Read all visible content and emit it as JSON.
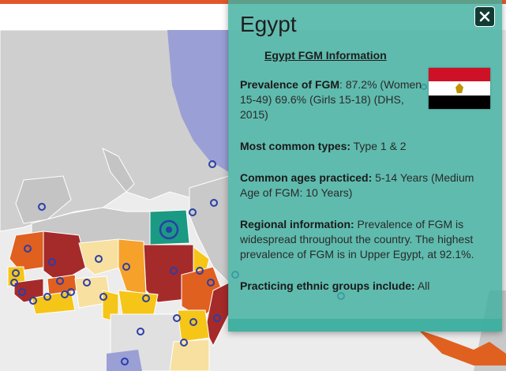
{
  "panel": {
    "country": "Egypt",
    "subtitle": "Egypt FGM Information",
    "close_icon": "close-icon",
    "flag_icon": "egypt-flag",
    "sections": [
      {
        "label": "Prevalence of FGM",
        "text": ": 87.2% (Women 15-49) 69.6% (Girls 15-18) (DHS, 2015)"
      },
      {
        "label": "Most common types:",
        "text": " Type 1 & 2"
      },
      {
        "label": "Common ages practiced:",
        "text": " 5-14 Years (Medium Age of FGM: 10 Years)"
      },
      {
        "label": "Regional information:",
        "text": " Prevalence of FGM is widespread throughout the country. The highest prevalence of FGM is in Upper Egypt, at 92.1%."
      },
      {
        "label": "Practicing ethnic groups include:",
        "text": " All"
      }
    ]
  },
  "colors": {
    "topbar": "#e2572a",
    "panel": "#40b0a0",
    "selected_country": "#1a9a82",
    "prevalence_very_high": "#a52a2a",
    "prevalence_high": "#e06020",
    "prevalence_medium": "#f5a12a",
    "prevalence_low": "#f5c518",
    "prevalence_very_low": "#f7e0a0",
    "no_data_land": "#c8c8c8",
    "europe_overlay": "#9a9fd6",
    "marker": "#2a3fa8"
  }
}
